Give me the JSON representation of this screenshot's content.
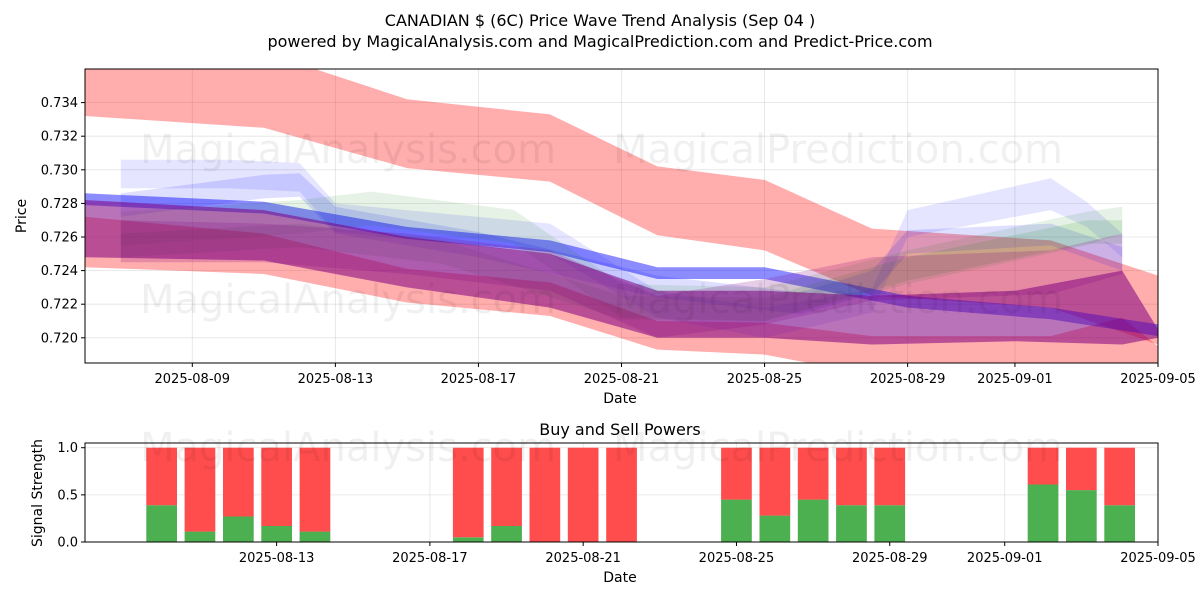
{
  "title_line1": "CANADIAN $ (6C) Price Wave Trend Analysis (Sep 04 )",
  "title_line2": "powered by MagicalAnalysis.com and MagicalPrediction.com and Predict-Price.com",
  "watermarks": [
    "MagicalAnalysis.com",
    "MagicalPrediction.com"
  ],
  "colors": {
    "red": "#ff0000",
    "blue": "#0000ff",
    "green": "#008000",
    "purple": "#800080",
    "buy": "#4caf50",
    "sell": "#ff4d4d"
  },
  "chart_data": [
    {
      "type": "area",
      "xlabel": "Date",
      "ylabel": "Price",
      "x_range": [
        "2025-08-06",
        "2025-09-05"
      ],
      "ylim": [
        0.7185,
        0.736
      ],
      "x_ticks": [
        "2025-08-09",
        "2025-08-13",
        "2025-08-17",
        "2025-08-21",
        "2025-08-25",
        "2025-08-29",
        "2025-09-01",
        "2025-09-05"
      ],
      "y_ticks": [
        "0.720",
        "0.722",
        "0.724",
        "0.726",
        "0.728",
        "0.730",
        "0.732",
        "0.734"
      ],
      "grid": true,
      "bands": [
        {
          "color": "red",
          "opacity": 0.32,
          "x": [
            "2025-08-06",
            "2025-08-11",
            "2025-08-15",
            "2025-08-19",
            "2025-08-22",
            "2025-08-25",
            "2025-08-28",
            "2025-09-02",
            "2025-09-05"
          ],
          "upper": [
            0.7365,
            0.737,
            0.7342,
            0.7333,
            0.7302,
            0.7294,
            0.7265,
            0.7258,
            0.7237
          ],
          "lower": [
            0.7332,
            0.7325,
            0.7301,
            0.7293,
            0.7261,
            0.7252,
            0.7225,
            0.7218,
            0.7196
          ]
        },
        {
          "color": "red",
          "opacity": 0.32,
          "x": [
            "2025-08-06",
            "2025-08-11",
            "2025-08-15",
            "2025-08-19",
            "2025-08-22",
            "2025-08-25",
            "2025-08-28",
            "2025-09-02",
            "2025-09-04",
            "2025-09-05"
          ],
          "upper": [
            0.7272,
            0.7262,
            0.7241,
            0.7233,
            0.721,
            0.7209,
            0.7201,
            0.7201,
            0.7212,
            0.7195
          ],
          "lower": [
            0.7242,
            0.7238,
            0.7221,
            0.7213,
            0.7193,
            0.719,
            0.7178,
            0.718,
            0.7178,
            0.7175
          ]
        },
        {
          "color": "blue",
          "opacity": 0.1,
          "x": [
            "2025-08-07",
            "2025-08-10",
            "2025-08-12",
            "2025-08-13",
            "2025-08-19",
            "2025-08-22",
            "2025-08-25",
            "2025-08-28",
            "2025-08-29",
            "2025-09-02",
            "2025-09-03",
            "2025-09-04"
          ],
          "upper": [
            0.7306,
            0.7306,
            0.7304,
            0.728,
            0.7268,
            0.7228,
            0.7218,
            0.7229,
            0.7276,
            0.7295,
            0.7281,
            0.7262
          ],
          "lower": [
            0.7289,
            0.7289,
            0.7287,
            0.7263,
            0.725,
            0.7212,
            0.72,
            0.7215,
            0.726,
            0.7276,
            0.7266,
            0.7248
          ]
        },
        {
          "color": "blue",
          "opacity": 0.13,
          "x": [
            "2025-08-07",
            "2025-08-11",
            "2025-08-12",
            "2025-08-13",
            "2025-08-17",
            "2025-08-22",
            "2025-08-26",
            "2025-08-28",
            "2025-08-29",
            "2025-09-02",
            "2025-09-04"
          ],
          "upper": [
            0.7286,
            0.7297,
            0.7298,
            0.7278,
            0.7263,
            0.7237,
            0.7227,
            0.724,
            0.7264,
            0.7268,
            0.7254
          ],
          "lower": [
            0.7272,
            0.7283,
            0.7284,
            0.7262,
            0.7248,
            0.7224,
            0.7214,
            0.7226,
            0.725,
            0.7255,
            0.724
          ]
        },
        {
          "color": "blue",
          "opacity": 0.45,
          "x": [
            "2025-08-06",
            "2025-08-11",
            "2025-08-15",
            "2025-08-19",
            "2025-08-22",
            "2025-08-25",
            "2025-08-29",
            "2025-09-02",
            "2025-09-05"
          ],
          "upper": [
            0.7286,
            0.7281,
            0.7266,
            0.7258,
            0.7242,
            0.7242,
            0.7225,
            0.7218,
            0.7208
          ],
          "lower": [
            0.7279,
            0.7274,
            0.7259,
            0.7251,
            0.7235,
            0.7235,
            0.7218,
            0.7211,
            0.7201
          ]
        },
        {
          "color": "green",
          "opacity": 0.1,
          "x": [
            "2025-08-07",
            "2025-08-12",
            "2025-08-14",
            "2025-08-18",
            "2025-08-21",
            "2025-08-25",
            "2025-08-29",
            "2025-09-03",
            "2025-09-04"
          ],
          "upper": [
            0.7275,
            0.7282,
            0.7287,
            0.7276,
            0.7232,
            0.723,
            0.7252,
            0.7275,
            0.7278
          ],
          "lower": [
            0.7255,
            0.7262,
            0.7267,
            0.7256,
            0.7212,
            0.721,
            0.7232,
            0.7255,
            0.7262
          ]
        },
        {
          "color": "green",
          "opacity": 0.12,
          "x": [
            "2025-08-07",
            "2025-08-12",
            "2025-08-16",
            "2025-08-21",
            "2025-08-25",
            "2025-08-29",
            "2025-09-03",
            "2025-09-04"
          ],
          "upper": [
            0.7262,
            0.7268,
            0.7258,
            0.7225,
            0.7224,
            0.7248,
            0.727,
            0.727
          ],
          "lower": [
            0.7248,
            0.7254,
            0.7244,
            0.7211,
            0.721,
            0.7234,
            0.7256,
            0.7256
          ]
        },
        {
          "color": "purple",
          "opacity": 0.2,
          "x": [
            "2025-08-07",
            "2025-08-11",
            "2025-08-15",
            "2025-08-19",
            "2025-08-22",
            "2025-08-25",
            "2025-08-28",
            "2025-09-02",
            "2025-09-04"
          ],
          "upper": [
            0.727,
            0.7268,
            0.7262,
            0.7252,
            0.7225,
            0.7235,
            0.7248,
            0.7252,
            0.7262
          ],
          "lower": [
            0.7245,
            0.7245,
            0.7238,
            0.7228,
            0.72,
            0.7208,
            0.7222,
            0.7226,
            0.7238
          ]
        },
        {
          "color": "purple",
          "opacity": 0.55,
          "x": [
            "2025-08-06",
            "2025-08-11",
            "2025-08-15",
            "2025-08-19",
            "2025-08-22",
            "2025-08-25",
            "2025-08-28",
            "2025-09-01",
            "2025-09-04",
            "2025-09-05"
          ],
          "upper": [
            0.7282,
            0.7276,
            0.726,
            0.725,
            0.7228,
            0.7228,
            0.7225,
            0.7228,
            0.724,
            0.7205
          ],
          "lower": [
            0.7248,
            0.7246,
            0.723,
            0.7218,
            0.72,
            0.72,
            0.7196,
            0.7198,
            0.7196,
            0.72
          ]
        }
      ]
    },
    {
      "type": "bar",
      "title": "Buy and Sell Powers",
      "xlabel": "Date",
      "ylabel": "Signal Strength",
      "ylim": [
        0,
        1.05
      ],
      "x_range": [
        "2025-08-08",
        "2025-09-05"
      ],
      "x_ticks": [
        "2025-08-13",
        "2025-08-17",
        "2025-08-21",
        "2025-08-25",
        "2025-08-29",
        "2025-09-01",
        "2025-09-05"
      ],
      "y_ticks": [
        "0.0",
        "0.5",
        "1.0"
      ],
      "grid": true,
      "series": [
        {
          "name": "Buy",
          "color": "buy"
        },
        {
          "name": "Sell",
          "color": "sell"
        }
      ],
      "dates": [
        "2025-08-10",
        "2025-08-11",
        "2025-08-12",
        "2025-08-13",
        "2025-08-14",
        "2025-08-18",
        "2025-08-19",
        "2025-08-20",
        "2025-08-21",
        "2025-08-22",
        "2025-08-25",
        "2025-08-26",
        "2025-08-27",
        "2025-08-28",
        "2025-08-29",
        "2025-09-02",
        "2025-09-03",
        "2025-09-04"
      ],
      "buy": [
        0.39,
        0.11,
        0.27,
        0.17,
        0.11,
        0.05,
        0.17,
        0.0,
        0.0,
        0.0,
        0.45,
        0.28,
        0.45,
        0.39,
        0.39,
        0.61,
        0.55,
        0.39
      ],
      "sell": [
        0.61,
        0.89,
        0.73,
        0.83,
        0.89,
        0.95,
        0.83,
        1.0,
        1.0,
        1.0,
        0.55,
        0.72,
        0.55,
        0.61,
        0.61,
        0.39,
        0.45,
        0.61
      ]
    }
  ]
}
